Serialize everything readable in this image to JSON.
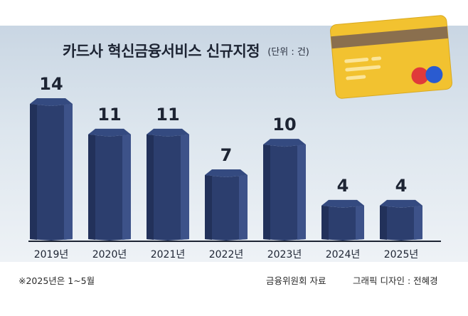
{
  "chart_data": {
    "type": "bar",
    "title": "카드사 혁신금융서비스 신규지정",
    "unit": "(단위 : 건)",
    "categories": [
      "2019년",
      "2020년",
      "2021년",
      "2022년",
      "2023년",
      "2024년",
      "2025년"
    ],
    "values": [
      14,
      11,
      11,
      7,
      10,
      4,
      4
    ],
    "ylim": [
      0,
      14
    ],
    "grid": false,
    "bar_color": "#2c3e6e"
  },
  "footer": {
    "note": "※2025년은 1~5월",
    "source": "금융위원회 자료",
    "credit": "그래픽 디자인 : 전혜경"
  },
  "decoration": {
    "card_color": "#f2c230",
    "stripe_color": "#8a6f4e",
    "circle_colors": [
      "#e03a3a",
      "#2a5bd0"
    ]
  }
}
